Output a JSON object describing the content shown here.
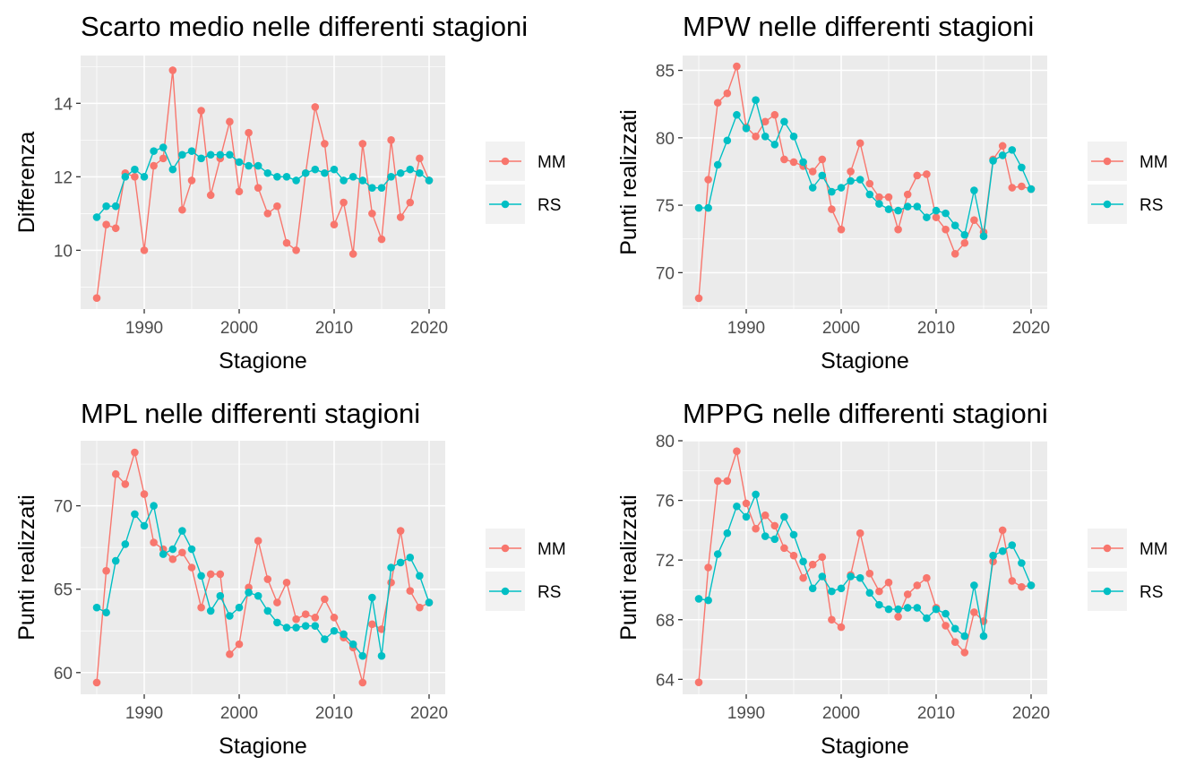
{
  "chart_data": [
    {
      "type": "line",
      "title": "Scarto medio nelle differenti stagioni",
      "xlabel": "Stagione",
      "ylabel": "Differenza",
      "xlim": [
        1983.3,
        2021.7
      ],
      "ylim": [
        8.4,
        15.3
      ],
      "x_ticks": [
        1990,
        2000,
        2010,
        2020
      ],
      "y_ticks": [
        10,
        12,
        14
      ],
      "x": [
        1985,
        1986,
        1987,
        1988,
        1989,
        1990,
        1991,
        1992,
        1993,
        1994,
        1995,
        1996,
        1997,
        1998,
        1999,
        2000,
        2001,
        2002,
        2003,
        2004,
        2005,
        2006,
        2007,
        2008,
        2009,
        2010,
        2011,
        2012,
        2013,
        2014,
        2015,
        2016,
        2017,
        2018,
        2019,
        2020
      ],
      "series": [
        {
          "name": "MM",
          "color": "#F8766D",
          "values": [
            8.7,
            10.7,
            10.6,
            12.1,
            12.0,
            10.0,
            12.3,
            12.5,
            14.9,
            11.1,
            11.9,
            13.8,
            11.5,
            12.5,
            13.5,
            11.6,
            13.2,
            11.7,
            11.0,
            11.2,
            10.2,
            10.0,
            12.1,
            13.9,
            12.9,
            10.7,
            11.3,
            9.9,
            12.9,
            11.0,
            10.3,
            13.0,
            10.9,
            11.3,
            12.5,
            11.9
          ]
        },
        {
          "name": "RS",
          "color": "#00BFC4",
          "values": [
            10.9,
            11.2,
            11.2,
            12.0,
            12.2,
            12.0,
            12.7,
            12.8,
            12.2,
            12.6,
            12.7,
            12.5,
            12.6,
            12.6,
            12.6,
            12.4,
            12.3,
            12.3,
            12.1,
            12.0,
            12.0,
            11.9,
            12.1,
            12.2,
            12.1,
            12.2,
            11.9,
            12.0,
            11.9,
            11.7,
            11.7,
            12.0,
            12.1,
            12.2,
            12.1,
            11.9
          ]
        }
      ],
      "legend_position": "right",
      "grid": true
    },
    {
      "type": "line",
      "title": "MPW nelle differenti stagioni",
      "xlabel": "Stagione",
      "ylabel": "Punti realizzati",
      "xlim": [
        1983.3,
        2021.7
      ],
      "ylim": [
        67.3,
        86.1
      ],
      "x_ticks": [
        1990,
        2000,
        2010,
        2020
      ],
      "y_ticks": [
        70,
        75,
        80,
        85
      ],
      "x": [
        1985,
        1986,
        1987,
        1988,
        1989,
        1990,
        1991,
        1992,
        1993,
        1994,
        1995,
        1996,
        1997,
        1998,
        1999,
        2000,
        2001,
        2002,
        2003,
        2004,
        2005,
        2006,
        2007,
        2008,
        2009,
        2010,
        2011,
        2012,
        2013,
        2014,
        2015,
        2016,
        2017,
        2018,
        2019,
        2020
      ],
      "series": [
        {
          "name": "MM",
          "color": "#F8766D",
          "values": [
            68.1,
            76.9,
            82.6,
            83.3,
            85.3,
            80.8,
            80.1,
            81.2,
            81.7,
            78.4,
            78.2,
            77.9,
            77.5,
            78.4,
            74.7,
            73.2,
            77.5,
            79.6,
            76.6,
            75.6,
            75.6,
            73.2,
            75.8,
            77.2,
            77.3,
            74.1,
            73.2,
            71.4,
            72.2,
            73.9,
            73.0,
            78.4,
            79.4,
            76.3,
            76.4,
            76.2
          ]
        },
        {
          "name": "RS",
          "color": "#00BFC4",
          "values": [
            74.8,
            74.8,
            78.0,
            79.8,
            81.7,
            80.7,
            82.8,
            80.1,
            79.5,
            81.2,
            80.1,
            78.2,
            76.3,
            77.2,
            76.0,
            76.3,
            76.8,
            76.9,
            75.8,
            75.1,
            74.7,
            74.6,
            74.9,
            74.9,
            74.1,
            74.6,
            74.4,
            73.5,
            72.8,
            76.1,
            72.7,
            78.3,
            78.7,
            79.1,
            77.8,
            76.2
          ]
        }
      ],
      "legend_position": "right",
      "grid": true
    },
    {
      "type": "line",
      "title": "MPL nelle differenti stagioni",
      "xlabel": "Stagione",
      "ylabel": "Punti realizzati",
      "xlim": [
        1983.3,
        2021.7
      ],
      "ylim": [
        58.7,
        73.9
      ],
      "x_ticks": [
        1990,
        2000,
        2010,
        2020
      ],
      "y_ticks": [
        60,
        65,
        70
      ],
      "x": [
        1985,
        1986,
        1987,
        1988,
        1989,
        1990,
        1991,
        1992,
        1993,
        1994,
        1995,
        1996,
        1997,
        1998,
        1999,
        2000,
        2001,
        2002,
        2003,
        2004,
        2005,
        2006,
        2007,
        2008,
        2009,
        2010,
        2011,
        2012,
        2013,
        2014,
        2015,
        2016,
        2017,
        2018,
        2019,
        2020
      ],
      "series": [
        {
          "name": "MM",
          "color": "#F8766D",
          "values": [
            59.4,
            66.1,
            71.9,
            71.3,
            73.2,
            70.7,
            67.8,
            67.4,
            66.8,
            67.2,
            66.3,
            63.9,
            65.9,
            65.9,
            61.1,
            61.7,
            65.1,
            67.9,
            65.6,
            64.2,
            65.4,
            63.2,
            63.5,
            63.3,
            64.4,
            63.3,
            62.1,
            61.5,
            59.4,
            62.9,
            62.6,
            65.4,
            68.5,
            64.9,
            63.9,
            64.2
          ]
        },
        {
          "name": "RS",
          "color": "#00BFC4",
          "values": [
            63.9,
            63.6,
            66.7,
            67.7,
            69.5,
            68.8,
            70.0,
            67.1,
            67.4,
            68.5,
            67.4,
            65.8,
            63.7,
            64.6,
            63.4,
            63.9,
            64.8,
            64.6,
            63.7,
            63.0,
            62.7,
            62.7,
            62.8,
            62.8,
            62.0,
            62.5,
            62.3,
            61.7,
            61.0,
            64.5,
            61.0,
            66.3,
            66.6,
            66.9,
            65.8,
            64.2
          ]
        }
      ],
      "legend_position": "right",
      "grid": true
    },
    {
      "type": "line",
      "title": "MPPG nelle differenti stagioni",
      "xlabel": "Stagione",
      "ylabel": "Punti realizzati",
      "xlim": [
        1983.3,
        2021.7
      ],
      "ylim": [
        63.0,
        80.0
      ],
      "x_ticks": [
        1990,
        2000,
        2010,
        2020
      ],
      "y_ticks": [
        64,
        68,
        72,
        76,
        80
      ],
      "x": [
        1985,
        1986,
        1987,
        1988,
        1989,
        1990,
        1991,
        1992,
        1993,
        1994,
        1995,
        1996,
        1997,
        1998,
        1999,
        2000,
        2001,
        2002,
        2003,
        2004,
        2005,
        2006,
        2007,
        2008,
        2009,
        2010,
        2011,
        2012,
        2013,
        2014,
        2015,
        2016,
        2017,
        2018,
        2019,
        2020
      ],
      "series": [
        {
          "name": "MM",
          "color": "#F8766D",
          "values": [
            63.8,
            71.5,
            77.3,
            77.3,
            79.3,
            75.8,
            74.1,
            75.0,
            74.3,
            72.8,
            72.3,
            70.8,
            71.7,
            72.2,
            68.0,
            67.5,
            71.0,
            73.8,
            71.1,
            69.9,
            70.5,
            68.2,
            69.7,
            70.3,
            70.8,
            68.8,
            67.6,
            66.5,
            65.8,
            68.5,
            67.9,
            71.9,
            74.0,
            70.6,
            70.2,
            70.3
          ]
        },
        {
          "name": "RS",
          "color": "#00BFC4",
          "values": [
            69.4,
            69.3,
            72.4,
            73.8,
            75.6,
            74.9,
            76.4,
            73.6,
            73.4,
            74.9,
            73.7,
            71.9,
            70.1,
            70.9,
            69.9,
            70.1,
            70.9,
            70.8,
            69.8,
            69.0,
            68.7,
            68.7,
            68.8,
            68.8,
            68.1,
            68.7,
            68.4,
            67.4,
            66.9,
            70.3,
            66.9,
            72.3,
            72.6,
            73.0,
            71.8,
            70.3
          ]
        }
      ],
      "legend_position": "right",
      "grid": true
    }
  ]
}
